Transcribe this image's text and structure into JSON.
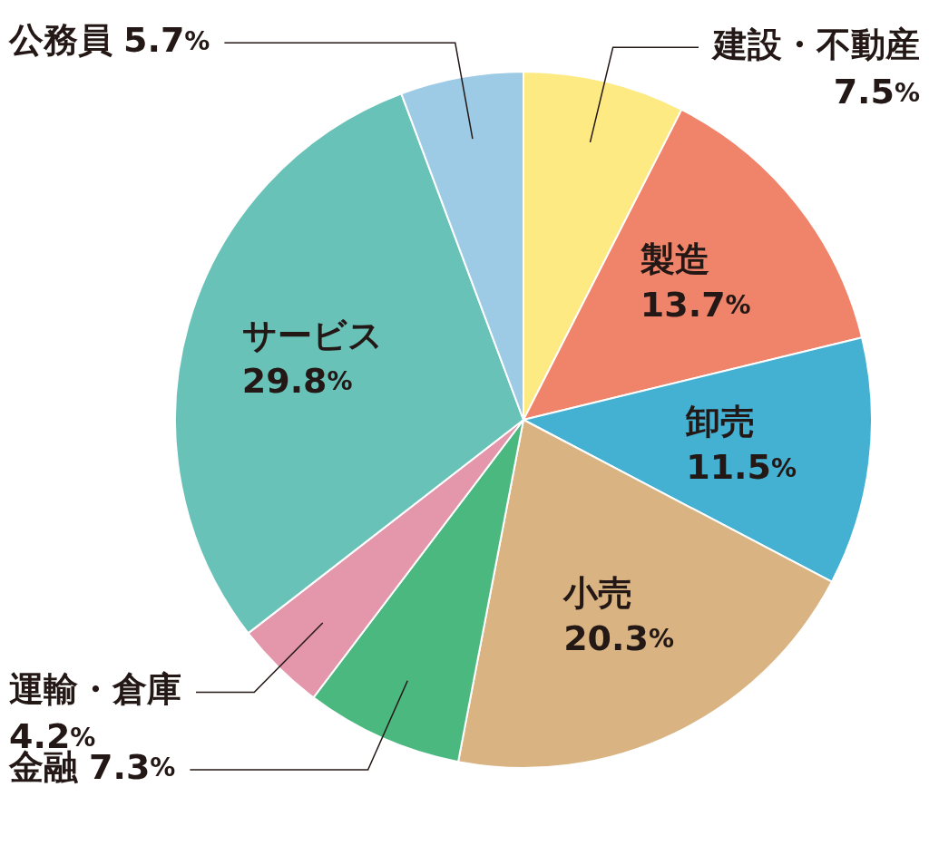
{
  "chart_data": {
    "type": "pie",
    "categories": [
      "建設・不動産",
      "製造",
      "卸売",
      "小売",
      "金融",
      "運輸・倉庫",
      "サービス",
      "公務員"
    ],
    "values": [
      7.5,
      13.7,
      11.5,
      20.3,
      7.3,
      4.2,
      29.8,
      5.7
    ],
    "colors": [
      "#fdea83",
      "#ef846a",
      "#44b0d2",
      "#d9b482",
      "#4bb880",
      "#e496ab",
      "#69c2b8",
      "#9dcae4"
    ],
    "value_labels": [
      "7.5%",
      "13.7%",
      "11.5%",
      "20.3%",
      "7.3%",
      "4.2%",
      "29.8%",
      "5.7%"
    ]
  }
}
